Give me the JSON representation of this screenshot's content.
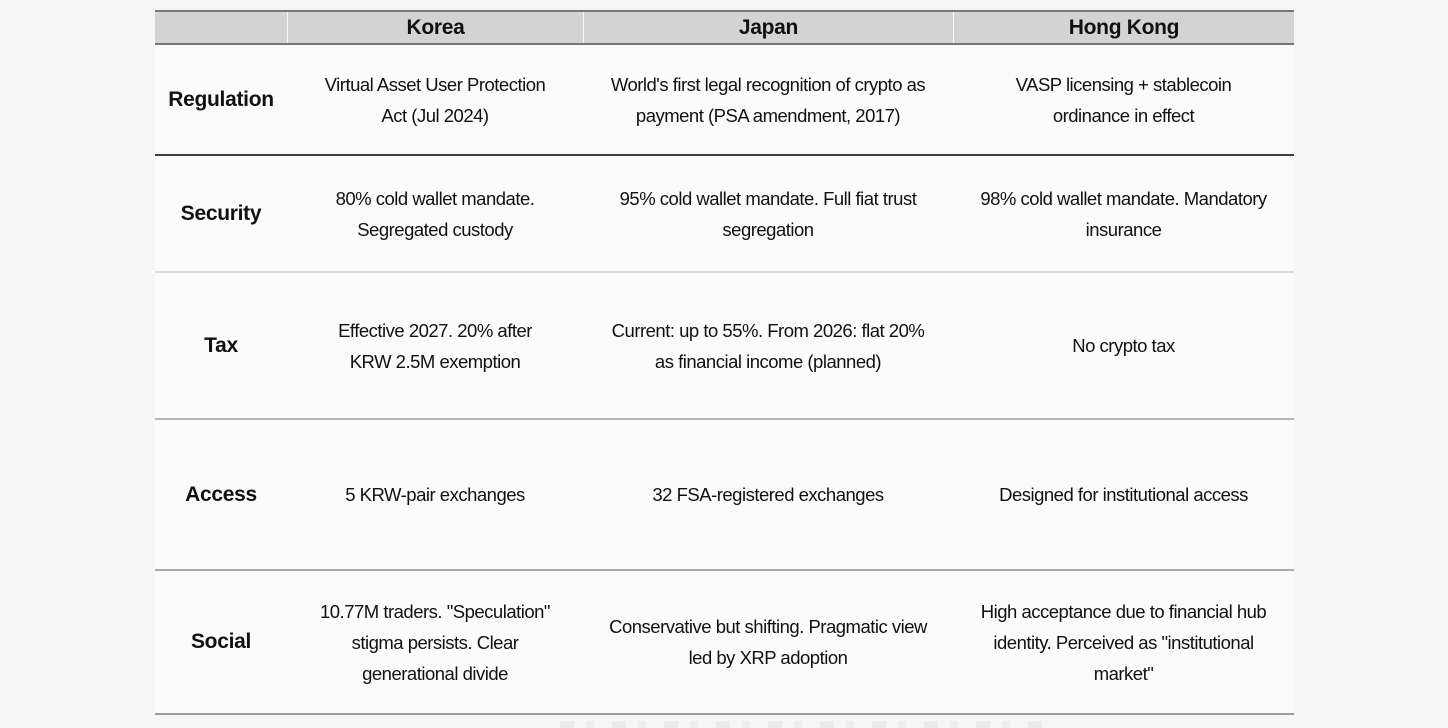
{
  "table": {
    "columns": [
      "",
      "Korea",
      "Japan",
      "Hong Kong"
    ],
    "rows": [
      {
        "label": "Regulation",
        "cells": [
          "Virtual Asset User Protection\nAct (Jul 2024)",
          "World's first legal recognition of crypto as\npayment (PSA amendment, 2017)",
          "VASP licensing + stablecoin\nordinance in effect"
        ]
      },
      {
        "label": "Security",
        "cells": [
          "80% cold wallet mandate.\nSegregated custody",
          "95% cold wallet mandate. Full fiat trust\nsegregation",
          "98% cold wallet mandate. Mandatory\ninsurance"
        ]
      },
      {
        "label": "Tax",
        "cells": [
          "Effective 2027. 20% after\nKRW 2.5M exemption",
          "Current: up to 55%. From 2026: flat 20%\nas financial income (planned)",
          "No crypto tax"
        ]
      },
      {
        "label": "Access",
        "cells": [
          "5 KRW-pair exchanges",
          "32 FSA-registered exchanges",
          "Designed for institutional access"
        ]
      },
      {
        "label": "Social",
        "cells": [
          "10.77M traders. \"Speculation\"\nstigma persists. Clear\ngenerational divide",
          "Conservative but shifting. Pragmatic view\nled by XRP adoption",
          "High acceptance due to financial hub\nidentity. Perceived as \"institutional\nmarket\""
        ]
      }
    ]
  },
  "colors": {
    "page_bg": "#f6f6f6",
    "table_bg": "#fbfbfb",
    "header_bg": "#d3d3d3",
    "header_border": "#767676",
    "line_dark": "#3d3d3d",
    "line_light": "#dadada",
    "line_mid": "#b5b5b5",
    "line_mid2": "#aaaaaa",
    "line_bottom": "#9c9c9c",
    "text_color": "#111111"
  }
}
